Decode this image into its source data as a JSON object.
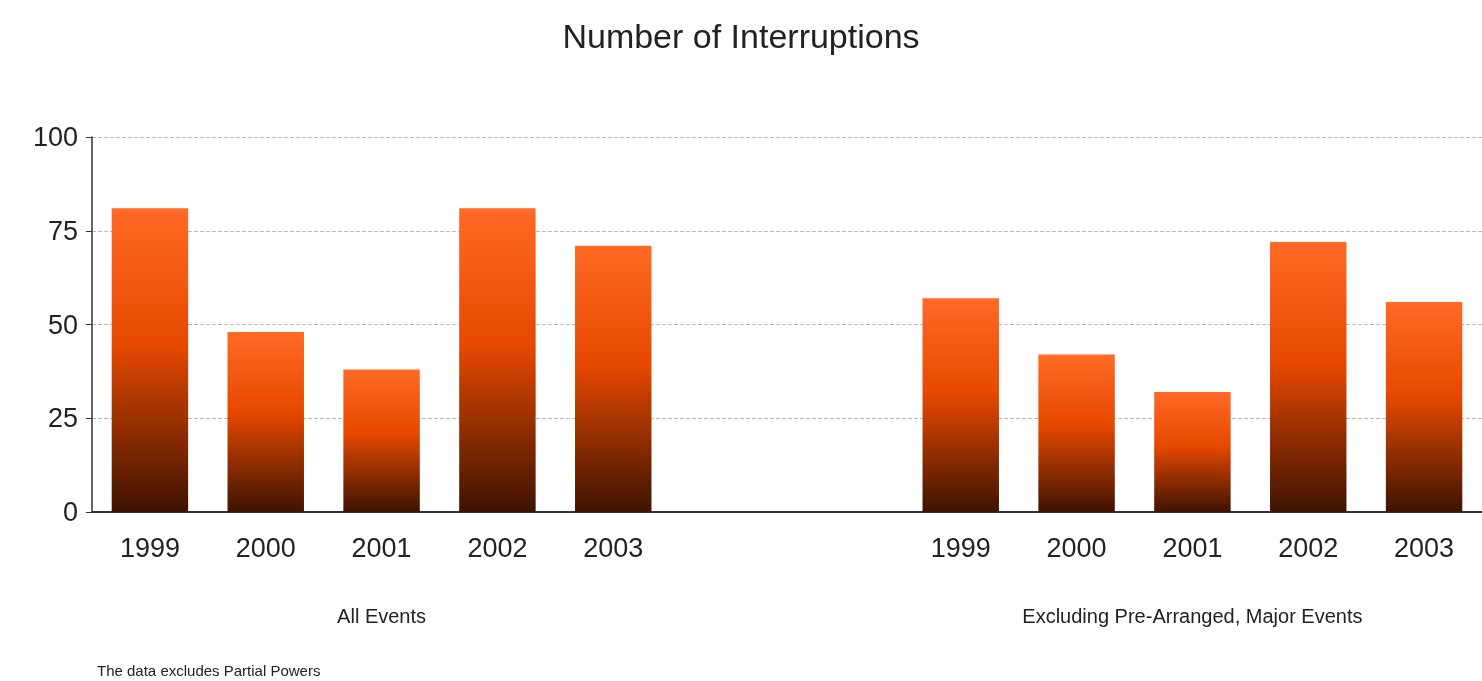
{
  "chart_data": {
    "type": "bar",
    "title": "Number of Interruptions",
    "categories": [
      "1999",
      "2000",
      "2001",
      "2002",
      "2003",
      null,
      null,
      "1999",
      "2000",
      "2001",
      "2002",
      "2003"
    ],
    "values": [
      81,
      48,
      38,
      81,
      71,
      null,
      null,
      57,
      42,
      32,
      72,
      56
    ],
    "color": "#ff6a26",
    "ylim": [
      0,
      100
    ],
    "yticks": [
      0,
      25,
      50,
      75,
      100
    ],
    "grid": "y",
    "annotations": [
      "All Events",
      "Excluding Pre-Arranged, Major Events",
      "The data excludes Partial Powers"
    ]
  }
}
